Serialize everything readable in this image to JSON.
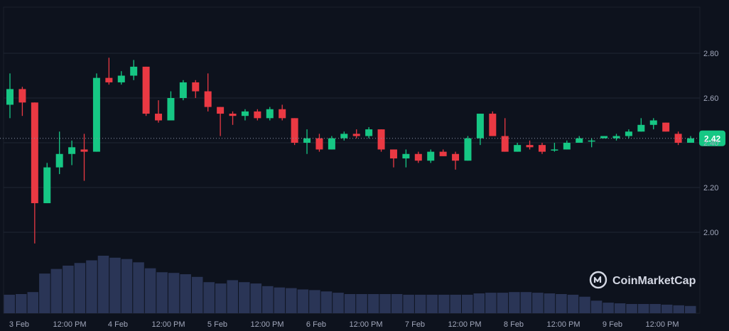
{
  "chart_data": {
    "type": "candlestick",
    "x_ticks": [
      "3 Feb",
      "12:00 PM",
      "4 Feb",
      "12:00 PM",
      "5 Feb",
      "12:00 PM",
      "6 Feb",
      "12:00 PM",
      "7 Feb",
      "12:00 PM",
      "8 Feb",
      "12:00 PM",
      "9 Feb",
      "12:00 PM"
    ],
    "y_ticks": [
      "2.00",
      "2.20",
      "2.40",
      "2.60",
      "2.80"
    ],
    "ylim": [
      1.93,
      3.0
    ],
    "current_price": 2.42,
    "current_price_label": "2.42",
    "watermark": "CoinMarketCap",
    "colors": {
      "up": "#16c784",
      "down": "#ea3943",
      "volume": "#2a3556",
      "background": "#0d121d",
      "grid": "#1e2533",
      "axis_text": "#a1a7bb"
    },
    "candles": [
      [
        2.57,
        2.64,
        2.71,
        2.51
      ],
      [
        2.64,
        2.58,
        2.65,
        2.52
      ],
      [
        2.58,
        2.13,
        2.58,
        1.95
      ],
      [
        2.13,
        2.29,
        2.31,
        2.13
      ],
      [
        2.29,
        2.35,
        2.45,
        2.26
      ],
      [
        2.35,
        2.38,
        2.41,
        2.3
      ],
      [
        2.37,
        2.36,
        2.44,
        2.23
      ],
      [
        2.36,
        2.69,
        2.71,
        2.36
      ],
      [
        2.69,
        2.67,
        2.78,
        2.66
      ],
      [
        2.67,
        2.7,
        2.72,
        2.66
      ],
      [
        2.7,
        2.74,
        2.77,
        2.68
      ],
      [
        2.74,
        2.53,
        2.74,
        2.52
      ],
      [
        2.53,
        2.5,
        2.59,
        2.49
      ],
      [
        2.5,
        2.6,
        2.63,
        2.5
      ],
      [
        2.6,
        2.67,
        2.68,
        2.59
      ],
      [
        2.67,
        2.63,
        2.68,
        2.6
      ],
      [
        2.63,
        2.56,
        2.71,
        2.54
      ],
      [
        2.56,
        2.53,
        2.56,
        2.43
      ],
      [
        2.53,
        2.52,
        2.54,
        2.48
      ],
      [
        2.52,
        2.54,
        2.55,
        2.5
      ],
      [
        2.54,
        2.51,
        2.55,
        2.5
      ],
      [
        2.51,
        2.55,
        2.56,
        2.5
      ],
      [
        2.55,
        2.51,
        2.57,
        2.5
      ],
      [
        2.51,
        2.4,
        2.51,
        2.39
      ],
      [
        2.4,
        2.42,
        2.46,
        2.35
      ],
      [
        2.42,
        2.37,
        2.44,
        2.36
      ],
      [
        2.37,
        2.42,
        2.43,
        2.37
      ],
      [
        2.42,
        2.44,
        2.45,
        2.41
      ],
      [
        2.44,
        2.43,
        2.46,
        2.42
      ],
      [
        2.43,
        2.46,
        2.47,
        2.42
      ],
      [
        2.46,
        2.37,
        2.46,
        2.36
      ],
      [
        2.37,
        2.33,
        2.37,
        2.29
      ],
      [
        2.33,
        2.35,
        2.37,
        2.29
      ],
      [
        2.35,
        2.32,
        2.36,
        2.31
      ],
      [
        2.32,
        2.36,
        2.37,
        2.31
      ],
      [
        2.36,
        2.34,
        2.37,
        2.34
      ],
      [
        2.35,
        2.32,
        2.36,
        2.28
      ],
      [
        2.32,
        2.42,
        2.43,
        2.32
      ],
      [
        2.42,
        2.53,
        2.53,
        2.39
      ],
      [
        2.53,
        2.43,
        2.54,
        2.43
      ],
      [
        2.43,
        2.36,
        2.51,
        2.36
      ],
      [
        2.36,
        2.39,
        2.4,
        2.36
      ],
      [
        2.39,
        2.38,
        2.41,
        2.37
      ],
      [
        2.39,
        2.36,
        2.4,
        2.35
      ],
      [
        2.37,
        2.37,
        2.4,
        2.36
      ],
      [
        2.37,
        2.4,
        2.41,
        2.37
      ],
      [
        2.4,
        2.42,
        2.43,
        2.4
      ],
      [
        2.41,
        2.41,
        2.42,
        2.38
      ],
      [
        2.42,
        2.43,
        2.43,
        2.42
      ],
      [
        2.42,
        2.43,
        2.44,
        2.41
      ],
      [
        2.43,
        2.45,
        2.46,
        2.42
      ],
      [
        2.45,
        2.48,
        2.51,
        2.45
      ],
      [
        2.48,
        2.5,
        2.51,
        2.46
      ],
      [
        2.49,
        2.45,
        2.49,
        2.45
      ],
      [
        2.44,
        2.4,
        2.45,
        2.39
      ],
      [
        2.4,
        2.42,
        2.43,
        2.4
      ]
    ],
    "volume": [
      28,
      29,
      32,
      60,
      67,
      72,
      76,
      80,
      87,
      84,
      82,
      77,
      68,
      62,
      61,
      59,
      55,
      47,
      45,
      50,
      47,
      45,
      41,
      39,
      38,
      36,
      35,
      33,
      31,
      29,
      29,
      29,
      29,
      29,
      28,
      28,
      28,
      28,
      28,
      28,
      30,
      31,
      31,
      32,
      32,
      31,
      30,
      29,
      28,
      25,
      19,
      16,
      15,
      14,
      14,
      14,
      13,
      12,
      11
    ]
  }
}
